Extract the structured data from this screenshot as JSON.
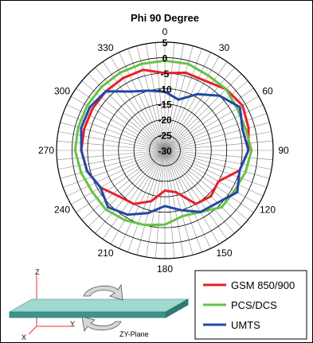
{
  "chart_data": {
    "type": "polar-line",
    "title": "Phi 90 Degree",
    "angle_unit": "degrees",
    "angle_ticks": [
      "0",
      "30",
      "60",
      "90",
      "120",
      "150",
      "180",
      "210",
      "240",
      "270",
      "300",
      "330"
    ],
    "radial_ticks": [
      "5",
      "0",
      "-5",
      "-10",
      "-15",
      "-20",
      "-25",
      "-30"
    ],
    "rlim": [
      -30,
      5
    ],
    "grid": true,
    "legend_position": "bottom-right",
    "series": [
      {
        "name": "GSM 850/900",
        "color": "#e8202a",
        "theta": [
          0,
          15,
          30,
          45,
          60,
          75,
          90,
          105,
          120,
          135,
          150,
          165,
          180,
          195,
          210,
          225,
          240,
          255,
          270,
          285,
          300,
          315,
          330,
          345
        ],
        "r": [
          -5,
          -4,
          -4,
          -2,
          -1,
          -2,
          -3,
          -5,
          -10,
          -9,
          -10,
          -16,
          -17,
          -13,
          -10,
          -9,
          -6,
          -4,
          -3,
          -3,
          -3,
          -3,
          -3,
          -3
        ]
      },
      {
        "name": "PCS/DCS",
        "color": "#66c244",
        "theta": [
          0,
          15,
          30,
          45,
          60,
          75,
          90,
          105,
          120,
          135,
          150,
          165,
          180,
          195,
          210,
          225,
          240,
          255,
          270,
          285,
          300,
          315,
          330,
          345
        ],
        "r": [
          -1,
          -1,
          -2,
          -2,
          -3,
          -3,
          -2,
          -3,
          -4,
          -4,
          -7,
          -8,
          -6,
          -5,
          -4,
          -3,
          -3,
          -2,
          -1,
          -1,
          -1,
          -1,
          -1,
          -1
        ]
      },
      {
        "name": "UMTS",
        "color": "#2448a6",
        "theta": [
          0,
          15,
          30,
          45,
          60,
          75,
          90,
          105,
          120,
          135,
          150,
          165,
          180,
          195,
          210,
          225,
          240,
          255,
          270,
          285,
          300,
          315,
          330,
          345
        ],
        "r": [
          -11,
          -13,
          -9,
          -5,
          -2,
          -4,
          -3,
          -5,
          -3,
          -6,
          -7,
          -10,
          -12,
          -9,
          -6,
          -4,
          -6,
          -4,
          -3,
          -2,
          -2,
          -3,
          -8,
          -10
        ]
      }
    ]
  },
  "orientation": {
    "axis_z": "Z",
    "axis_y": "Y",
    "axis_x": "X",
    "plane_label": "ZY-Plane"
  }
}
